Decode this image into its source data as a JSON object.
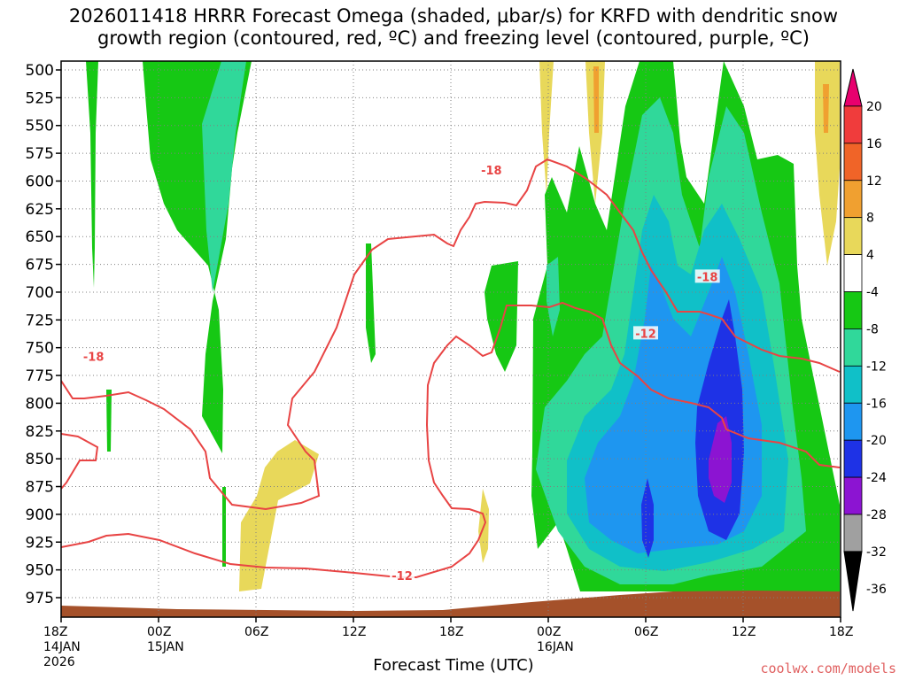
{
  "title_line1": "2026011418 HRRR Forecast Omega (shaded, μbar/s) for KRFD with dendritic snow",
  "title_line2": "growth region (contoured, red, ºC) and freezing level (contoured, purple, ºC)",
  "xlabel": "Forecast Time (UTC)",
  "credit": "coolwx.com/models",
  "chart_data": {
    "type": "time-height cross section",
    "title": "2026011418 HRRR Forecast Omega (shaded, μbar/s) for KRFD with dendritic snow growth region (contoured, red, ºC) and freezing level (contoured, purple, ºC)",
    "xlabel": "Forecast Time (UTC)",
    "ylabel": "",
    "y_axis": {
      "unit": "hPa",
      "range": [
        500,
        975
      ],
      "ticks": [
        500,
        525,
        550,
        575,
        600,
        625,
        650,
        675,
        700,
        725,
        750,
        775,
        800,
        825,
        850,
        875,
        900,
        925,
        950,
        975
      ]
    },
    "x_axis": {
      "range_hours": [
        0,
        48
      ],
      "ticks": [
        {
          "h": 0,
          "lines": [
            "18Z",
            "14JAN",
            "2026"
          ]
        },
        {
          "h": 6,
          "lines": [
            "00Z",
            "15JAN"
          ]
        },
        {
          "h": 12,
          "lines": [
            "06Z"
          ]
        },
        {
          "h": 18,
          "lines": [
            "12Z"
          ]
        },
        {
          "h": 24,
          "lines": [
            "18Z"
          ]
        },
        {
          "h": 30,
          "lines": [
            "00Z",
            "16JAN"
          ]
        },
        {
          "h": 36,
          "lines": [
            "06Z"
          ]
        },
        {
          "h": 42,
          "lines": [
            "12Z"
          ]
        },
        {
          "h": 48,
          "lines": [
            "18Z"
          ]
        }
      ]
    },
    "colorbar": {
      "labels": [
        20,
        16,
        12,
        8,
        4,
        -4,
        -8,
        -12,
        -16,
        -20,
        -24,
        -28,
        -32,
        -36
      ],
      "colors": [
        "#e8006e",
        "#f03c3c",
        "#f06428",
        "#f0a030",
        "#e8d85a",
        "#ffffff",
        "#16c814",
        "#30d89a",
        "#10c0c8",
        "#1e96f0",
        "#1e32e6",
        "#8c14d2",
        "#a0a0a0",
        "#000000"
      ]
    },
    "contour_labels": [
      {
        "value": "-18",
        "h": 2.0,
        "p": 758
      },
      {
        "value": "-18",
        "h": 26.5,
        "p": 590
      },
      {
        "value": "-18",
        "h": 39.8,
        "p": 686
      },
      {
        "value": "-12",
        "h": 36.0,
        "p": 737
      },
      {
        "value": "-12",
        "h": 21.0,
        "p": 955
      }
    ],
    "grid": true,
    "legend": "colorbar at right"
  }
}
